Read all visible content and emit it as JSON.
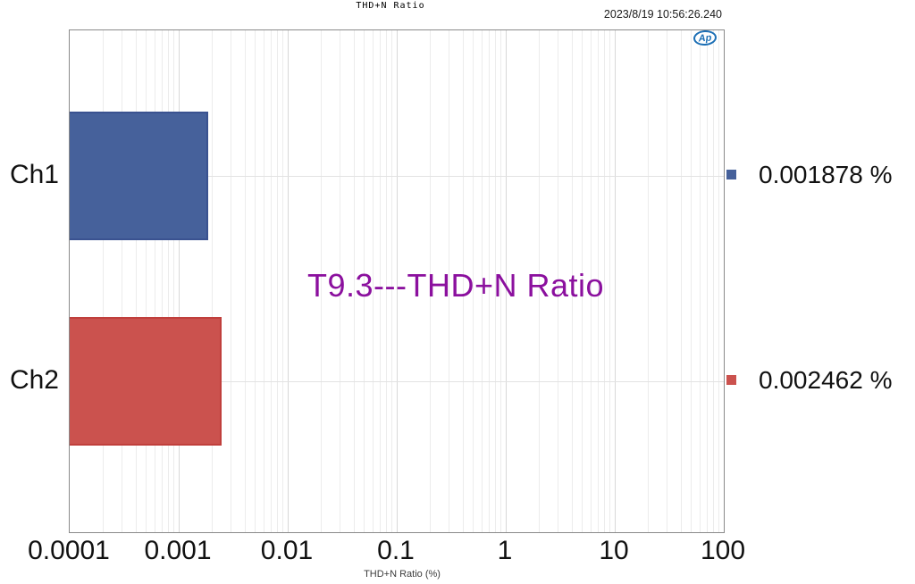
{
  "window": {
    "title": "THD+N Ratio",
    "timestamp": "2023/8/19 10:56:26.240"
  },
  "logo": {
    "text": "Ap",
    "color": "#1c6fb5"
  },
  "chart_data": {
    "type": "bar",
    "orientation": "horizontal",
    "title": "THD+N Ratio",
    "xlabel": "THD+N Ratio (%)",
    "x_scale": "log",
    "xlim": [
      0.0001,
      100
    ],
    "x_ticks": [
      "0.0001",
      "0.001",
      "0.01",
      "0.1",
      "1",
      "10",
      "100"
    ],
    "categories": [
      "Ch1",
      "Ch2"
    ],
    "values": [
      0.001878,
      0.002462
    ],
    "value_labels": [
      "0.001878 %",
      "0.002462 %"
    ],
    "bar_colors": [
      "#46619b",
      "#cb524e"
    ],
    "bar_border_colors": [
      "#3a5290",
      "#c03f3c"
    ],
    "grid": true,
    "legend_position": "right",
    "annotation": {
      "text": "T9.3---THD+N Ratio",
      "color": "#8b109e"
    }
  },
  "colors": {
    "plot_border": "#8a8a8a",
    "grid_major": "#d8d8d8",
    "grid_minor": "#ececec",
    "grid_horizontal": "#e2e2e2",
    "text": "#111111"
  }
}
